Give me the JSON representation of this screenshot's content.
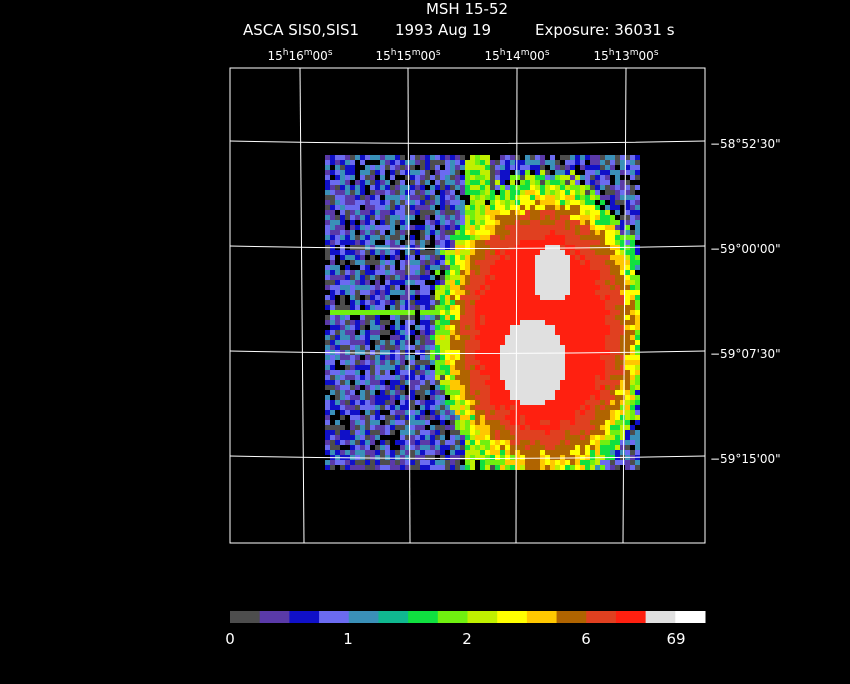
{
  "header": {
    "title": "MSH 15-52",
    "instrument": "ASCA SIS0,SIS1",
    "date": "1993 Aug 19",
    "exposure": "Exposure: 36031 s"
  },
  "ra_labels": [
    [
      "15",
      "h",
      "16",
      "m",
      "00",
      "s"
    ],
    [
      "15",
      "h",
      "15",
      "m",
      "00",
      "s"
    ],
    [
      "15",
      "h",
      "14",
      "m",
      "00",
      "s"
    ],
    [
      "15",
      "h",
      "13",
      "m",
      "00",
      "s"
    ]
  ],
  "dec_labels": [
    "−58°52'30\"",
    "−59°00'00\"",
    "−59°07'30\"",
    "−59°15'00\""
  ],
  "colorbar": {
    "colors": [
      "#4d4d4d",
      "#5a3aa8",
      "#1010c8",
      "#6b6bf0",
      "#3a90b8",
      "#10b890",
      "#10e040",
      "#70f010",
      "#c0f000",
      "#ffff00",
      "#ffc800",
      "#b06400",
      "#e04020",
      "#ff2010",
      "#e0e0e0",
      "#ffffff"
    ],
    "labels": [
      "0",
      "1",
      "2",
      "6",
      "69"
    ]
  }
}
